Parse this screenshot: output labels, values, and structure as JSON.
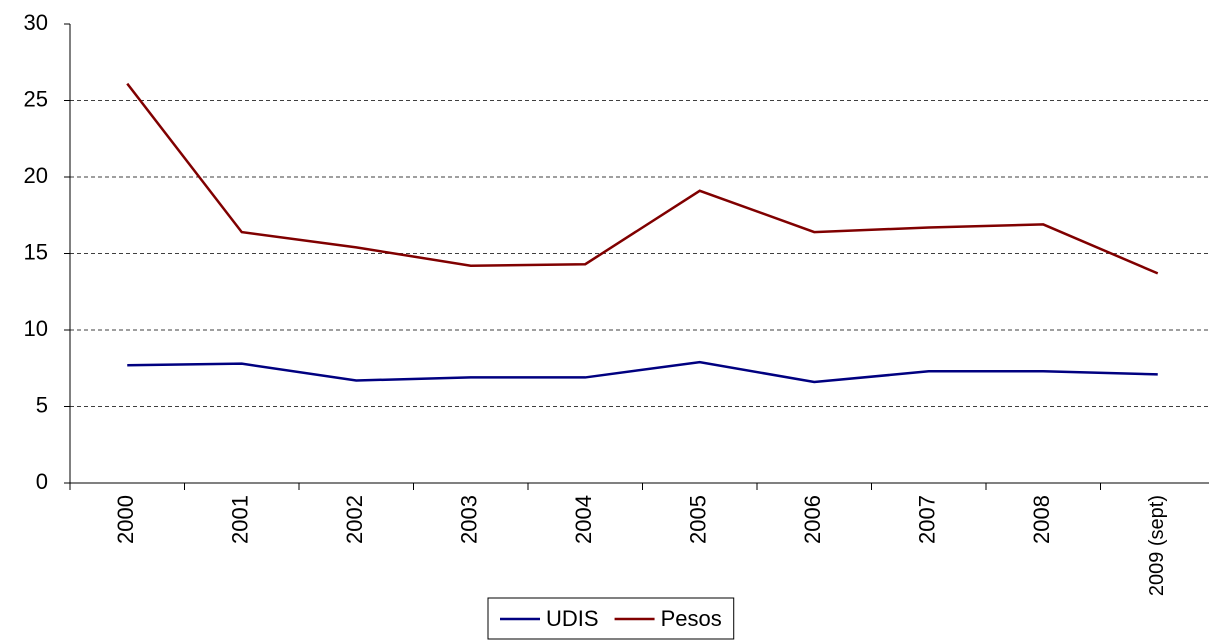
{
  "chart_data": {
    "type": "line",
    "categories": [
      "2000",
      "2001",
      "2002",
      "2003",
      "2004",
      "2005",
      "2006",
      "2007",
      "2008",
      "2009 (sept)"
    ],
    "series": [
      {
        "name": "UDIS",
        "color": "#000080",
        "values": [
          7.7,
          7.8,
          6.7,
          6.9,
          6.9,
          7.9,
          6.6,
          7.3,
          7.3,
          7.1
        ]
      },
      {
        "name": "Pesos",
        "color": "#800000",
        "values": [
          26.1,
          16.4,
          15.4,
          14.2,
          14.3,
          19.1,
          16.4,
          16.7,
          16.9,
          13.7
        ]
      }
    ],
    "ylim": [
      0,
      30
    ],
    "yticks": [
      0,
      5,
      10,
      15,
      20,
      25,
      30
    ],
    "grid": true,
    "legend": "bottom"
  }
}
